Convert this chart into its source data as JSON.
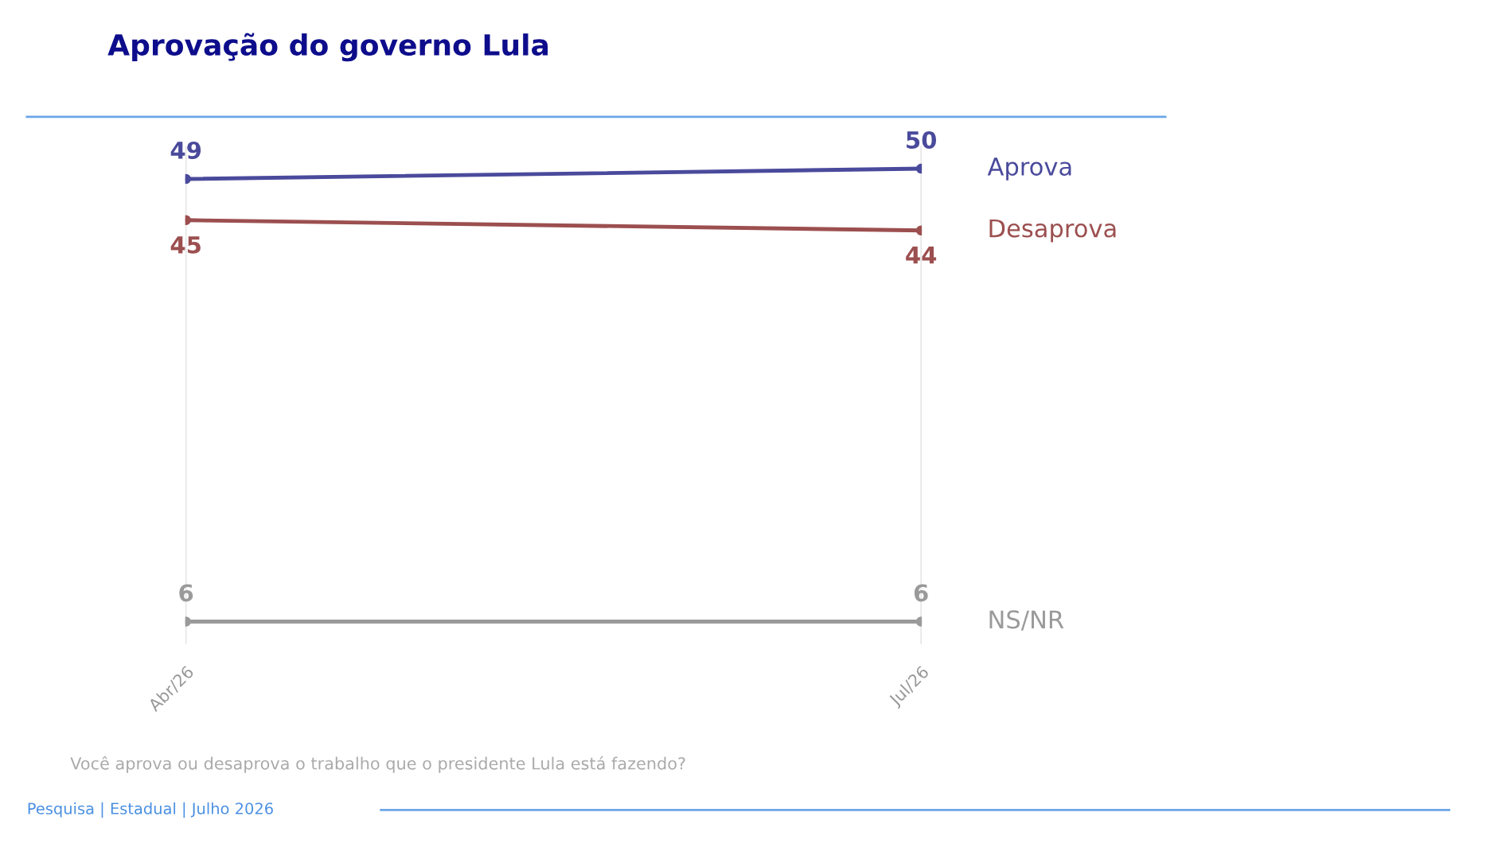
{
  "chart_data": {
    "type": "line",
    "title": "Aprovação do governo Lula",
    "categories": [
      "Abr/26",
      "Jul/26"
    ],
    "series": [
      {
        "name": "Aprova",
        "color": "#4a4a9c",
        "values": [
          49,
          50
        ]
      },
      {
        "name": "Desaprova",
        "color": "#9c4f4f",
        "values": [
          45,
          44
        ]
      },
      {
        "name": "NS/NR",
        "color": "#9a9a9a",
        "values": [
          6,
          6
        ]
      }
    ],
    "data_labels": true,
    "marker": "circle",
    "line_style": "solid",
    "grid": "x",
    "legend": false,
    "annotations": [
      "Você aprova ou desaprova o trabalho que o presidente Lula está fazendo?",
      "Pesquisa | Estadual | Julho 2026"
    ]
  }
}
